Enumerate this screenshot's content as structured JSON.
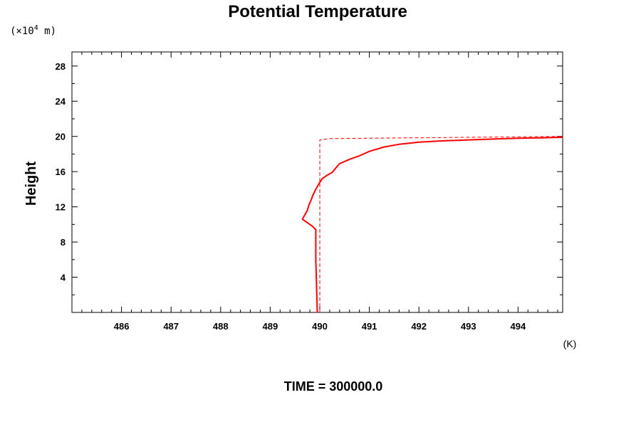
{
  "chart_data": {
    "type": "line",
    "title": "Potential Temperature",
    "ylabel": "Height",
    "yunit_prefix": "(×10",
    "yunit_exp": "4",
    "yunit_suffix": " m)",
    "xunit": "(K)",
    "footer": "TIME = 300000.0",
    "xlim": [
      485.0,
      494.9
    ],
    "ylim": [
      0.0,
      29.6
    ],
    "x_ticks": [
      486,
      487,
      488,
      489,
      490,
      491,
      492,
      493,
      494
    ],
    "y_ticks": [
      4,
      8,
      12,
      16,
      20,
      24,
      28
    ],
    "grid": false,
    "series": [
      {
        "style": "solid",
        "color": "#ff0000",
        "points": [
          [
            489.95,
            0.0
          ],
          [
            489.94,
            2.0
          ],
          [
            489.93,
            4.0
          ],
          [
            489.92,
            6.0
          ],
          [
            489.92,
            8.0
          ],
          [
            489.92,
            9.4
          ],
          [
            489.85,
            9.8
          ],
          [
            489.75,
            10.2
          ],
          [
            489.65,
            10.6
          ],
          [
            489.7,
            11.1
          ],
          [
            489.75,
            11.6
          ],
          [
            489.78,
            12.2
          ],
          [
            489.82,
            12.7
          ],
          [
            489.86,
            13.3
          ],
          [
            489.92,
            14.0
          ],
          [
            489.98,
            14.6
          ],
          [
            490.05,
            15.2
          ],
          [
            490.15,
            15.6
          ],
          [
            490.25,
            15.9
          ],
          [
            490.32,
            16.4
          ],
          [
            490.4,
            16.9
          ],
          [
            490.6,
            17.4
          ],
          [
            490.8,
            17.8
          ],
          [
            491.0,
            18.3
          ],
          [
            491.3,
            18.8
          ],
          [
            491.6,
            19.1
          ],
          [
            492.0,
            19.35
          ],
          [
            492.5,
            19.5
          ],
          [
            493.0,
            19.6
          ],
          [
            493.5,
            19.7
          ],
          [
            494.0,
            19.8
          ],
          [
            494.5,
            19.85
          ],
          [
            494.9,
            19.9
          ]
        ]
      },
      {
        "style": "dashed",
        "color": "#ff0000",
        "points": [
          [
            490.0,
            0.0
          ],
          [
            490.0,
            19.6
          ],
          [
            490.2,
            19.75
          ],
          [
            491.0,
            19.8
          ],
          [
            492.0,
            19.85
          ],
          [
            493.0,
            19.9
          ],
          [
            494.0,
            19.95
          ],
          [
            494.9,
            20.0
          ]
        ]
      }
    ]
  }
}
